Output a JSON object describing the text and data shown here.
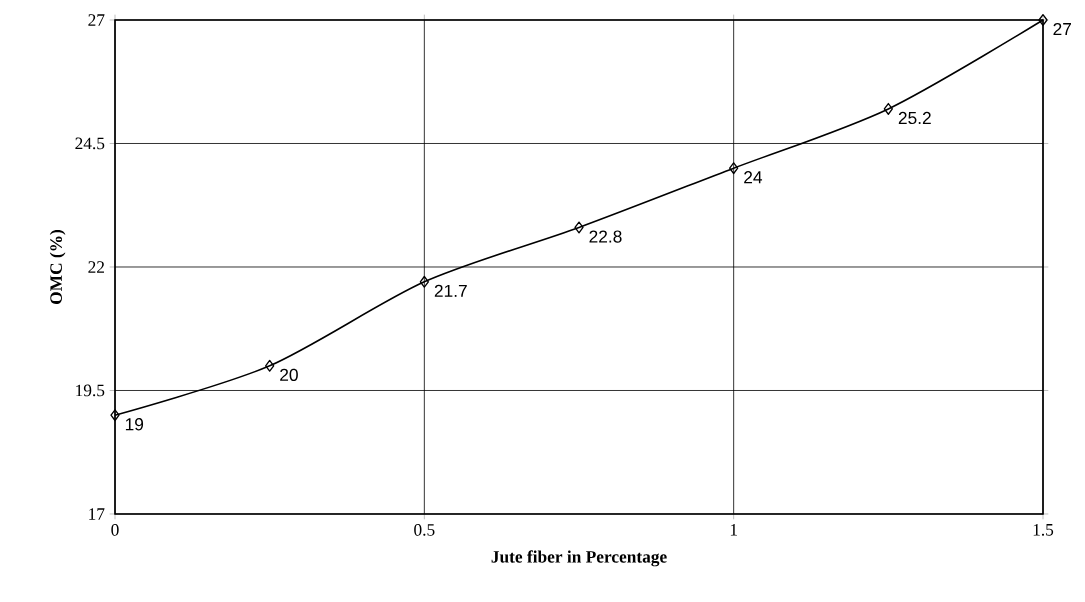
{
  "chart_data": {
    "type": "line",
    "xlabel": "Jute fiber in Percentage",
    "ylabel": "OMC (%)",
    "x": [
      0,
      0.25,
      0.5,
      0.75,
      1,
      1.25,
      1.5
    ],
    "series": [
      {
        "color": "#000000",
        "values": [
          19,
          20,
          21.7,
          22.8,
          24,
          25.2,
          27
        ]
      }
    ],
    "xlim": [
      0,
      1.5
    ],
    "ylim": [
      17,
      27
    ],
    "xticks": [
      0,
      0.5,
      1,
      1.5
    ],
    "yticks": [
      17,
      19.5,
      22,
      24.5,
      27
    ],
    "grid": true,
    "marker": "diamond",
    "line_style": "solid",
    "data_labels": true
  }
}
